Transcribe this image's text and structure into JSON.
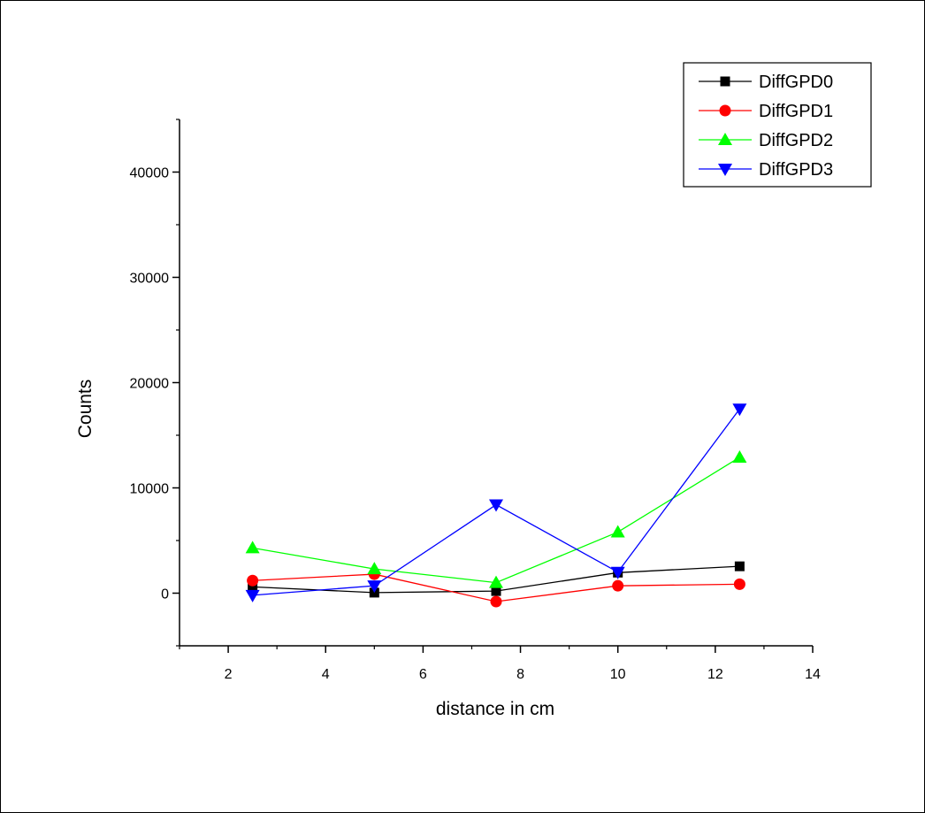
{
  "chart_data": {
    "type": "line",
    "title": "",
    "xlabel": "distance in cm",
    "ylabel": "Counts",
    "xlim": [
      1,
      14
    ],
    "ylim": [
      -5000,
      45000
    ],
    "xticks": [
      2,
      4,
      6,
      8,
      10,
      12,
      14
    ],
    "xticks_minor": [
      1,
      3,
      5,
      7,
      9,
      11,
      13
    ],
    "yticks": [
      0,
      10000,
      20000,
      30000,
      40000
    ],
    "yticks_minor": [
      -5000,
      5000,
      15000,
      25000,
      35000,
      45000
    ],
    "grid": false,
    "legend_position": "top-right",
    "x": [
      2.5,
      5,
      7.5,
      10,
      12.5
    ],
    "series": [
      {
        "name": "DiffGPD0",
        "color": "#000000",
        "marker": "square",
        "values": [
          600,
          50,
          200,
          1950,
          2550
        ]
      },
      {
        "name": "DiffGPD1",
        "color": "#ff0000",
        "marker": "circle",
        "values": [
          1200,
          1800,
          -800,
          700,
          850
        ]
      },
      {
        "name": "DiffGPD2",
        "color": "#00ff00",
        "marker": "triangle-up",
        "values": [
          4300,
          2300,
          1000,
          5800,
          12900
        ]
      },
      {
        "name": "DiffGPD3",
        "color": "#0000ff",
        "marker": "triangle-down",
        "values": [
          -200,
          700,
          8400,
          2000,
          17500
        ]
      }
    ]
  }
}
